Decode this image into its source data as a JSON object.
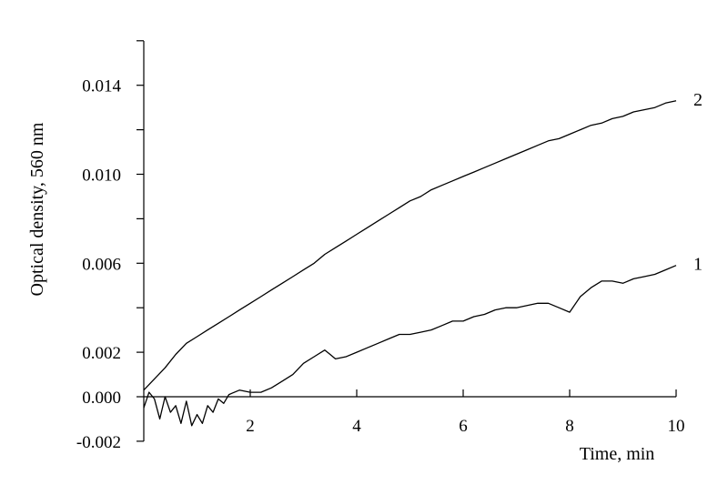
{
  "chart_data": {
    "type": "line",
    "title": "",
    "xlabel": "Time, min",
    "ylabel": "Optical density, 560 nm",
    "xlim": [
      0,
      10
    ],
    "ylim": [
      -0.002,
      0.016
    ],
    "x_ticks": [
      2,
      4,
      6,
      8,
      10
    ],
    "x_tick_labels": [
      "2",
      "4",
      "6",
      "8",
      "10"
    ],
    "y_ticks": [
      -0.002,
      0.0,
      0.002,
      0.006,
      0.01,
      0.014
    ],
    "y_tick_labels": [
      "-0.002",
      "0.000",
      "0.002",
      "0.006",
      "0.010",
      "0.014"
    ],
    "y_minor_ticks": [
      0.004,
      0.008,
      0.012,
      0.016
    ],
    "grid": false,
    "legend": "none",
    "line_color": "#000000",
    "series": [
      {
        "name": "1",
        "x": [
          0.0,
          0.1,
          0.2,
          0.3,
          0.4,
          0.5,
          0.6,
          0.7,
          0.8,
          0.9,
          1.0,
          1.1,
          1.2,
          1.3,
          1.4,
          1.5,
          1.6,
          1.8,
          2.0,
          2.2,
          2.4,
          2.6,
          2.8,
          3.0,
          3.2,
          3.4,
          3.5,
          3.6,
          3.8,
          4.0,
          4.2,
          4.4,
          4.6,
          4.8,
          5.0,
          5.2,
          5.4,
          5.6,
          5.8,
          6.0,
          6.2,
          6.4,
          6.6,
          6.8,
          7.0,
          7.2,
          7.4,
          7.6,
          7.8,
          8.0,
          8.2,
          8.4,
          8.6,
          8.8,
          9.0,
          9.2,
          9.4,
          9.6,
          9.8,
          10.0
        ],
        "values": [
          -0.0005,
          0.0002,
          -0.0001,
          -0.001,
          0.0,
          -0.0007,
          -0.0004,
          -0.0012,
          -0.0002,
          -0.0013,
          -0.0008,
          -0.0012,
          -0.0004,
          -0.0007,
          -0.0001,
          -0.0003,
          0.0001,
          0.0003,
          0.0002,
          0.0002,
          0.0004,
          0.0007,
          0.001,
          0.0015,
          0.0018,
          0.0021,
          0.0019,
          0.0017,
          0.0018,
          0.002,
          0.0022,
          0.0024,
          0.0026,
          0.0028,
          0.0028,
          0.0029,
          0.003,
          0.0032,
          0.0034,
          0.0034,
          0.0036,
          0.0037,
          0.0039,
          0.004,
          0.004,
          0.0041,
          0.0042,
          0.0042,
          0.004,
          0.0038,
          0.0045,
          0.0049,
          0.0052,
          0.0052,
          0.0051,
          0.0053,
          0.0054,
          0.0055,
          0.0057,
          0.0059
        ]
      },
      {
        "name": "2",
        "x": [
          0.0,
          0.2,
          0.4,
          0.6,
          0.8,
          1.0,
          1.2,
          1.4,
          1.6,
          1.8,
          2.0,
          2.2,
          2.4,
          2.6,
          2.8,
          3.0,
          3.2,
          3.4,
          3.6,
          3.8,
          4.0,
          4.2,
          4.4,
          4.6,
          4.8,
          5.0,
          5.2,
          5.4,
          5.6,
          5.8,
          6.0,
          6.2,
          6.4,
          6.6,
          6.8,
          7.0,
          7.2,
          7.4,
          7.6,
          7.8,
          8.0,
          8.2,
          8.4,
          8.6,
          8.8,
          9.0,
          9.2,
          9.4,
          9.6,
          9.8,
          10.0
        ],
        "values": [
          0.0003,
          0.0008,
          0.0013,
          0.0019,
          0.0024,
          0.0027,
          0.003,
          0.0033,
          0.0036,
          0.0039,
          0.0042,
          0.0045,
          0.0048,
          0.0051,
          0.0054,
          0.0057,
          0.006,
          0.0064,
          0.0067,
          0.007,
          0.0073,
          0.0076,
          0.0079,
          0.0082,
          0.0085,
          0.0088,
          0.009,
          0.0093,
          0.0095,
          0.0097,
          0.0099,
          0.0101,
          0.0103,
          0.0105,
          0.0107,
          0.0109,
          0.0111,
          0.0113,
          0.0115,
          0.0116,
          0.0118,
          0.012,
          0.0122,
          0.0123,
          0.0125,
          0.0126,
          0.0128,
          0.0129,
          0.013,
          0.0132,
          0.0133
        ]
      }
    ]
  }
}
